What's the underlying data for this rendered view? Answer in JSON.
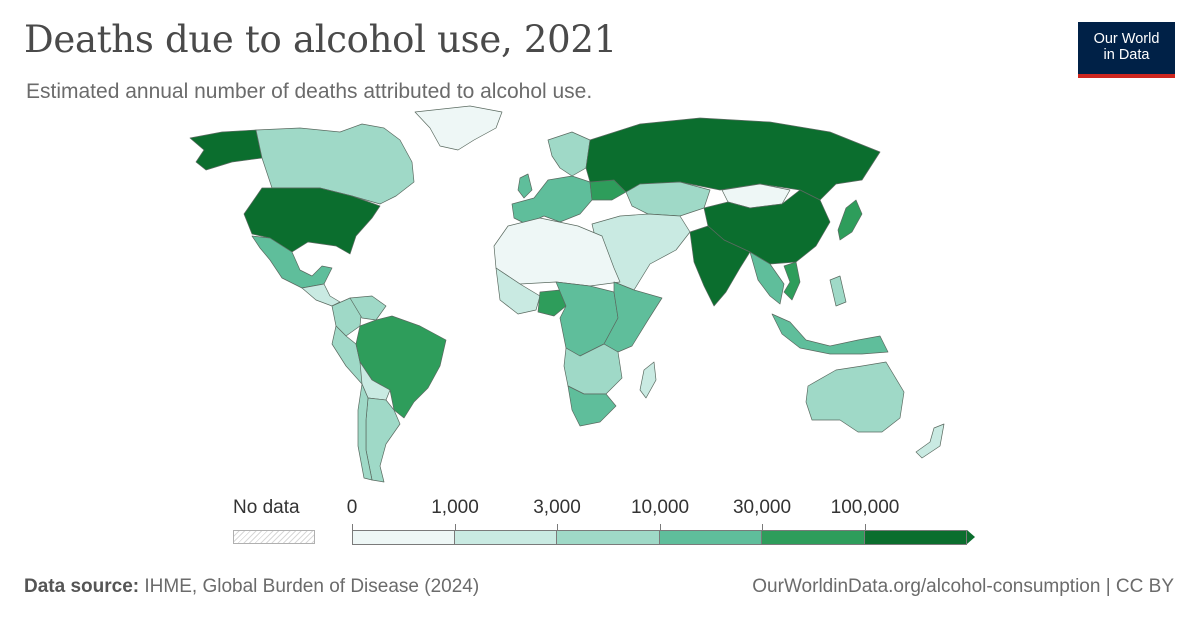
{
  "header": {
    "title": "Deaths due to alcohol use, 2021",
    "subtitle": "Estimated annual number of deaths attributed to alcohol use."
  },
  "logo": {
    "line1": "Our World",
    "line2": "in Data"
  },
  "legend": {
    "no_data_label": "No data",
    "tick_labels": [
      "0",
      "1,000",
      "3,000",
      "10,000",
      "30,000",
      "100,000"
    ],
    "colors": [
      "#eef7f6",
      "#c9eae2",
      "#9fd9c7",
      "#5fbe9b",
      "#2e9d5b",
      "#0b6e2e"
    ],
    "no_data_color": "#d8d8d8"
  },
  "map_regions": [
    {
      "name": "United States",
      "bin": 5
    },
    {
      "name": "Alaska",
      "bin": 5
    },
    {
      "name": "Canada",
      "bin": 2
    },
    {
      "name": "Greenland",
      "bin": 0
    },
    {
      "name": "Mexico",
      "bin": 3
    },
    {
      "name": "Central America",
      "bin": 1
    },
    {
      "name": "Colombia",
      "bin": 2
    },
    {
      "name": "Venezuela",
      "bin": 2
    },
    {
      "name": "Peru",
      "bin": 2
    },
    {
      "name": "Bolivia",
      "bin": 1
    },
    {
      "name": "Brazil",
      "bin": 4
    },
    {
      "name": "Argentina",
      "bin": 2
    },
    {
      "name": "Chile",
      "bin": 2
    },
    {
      "name": "United Kingdom",
      "bin": 3
    },
    {
      "name": "Europe",
      "bin": 3
    },
    {
      "name": "Ukraine",
      "bin": 4
    },
    {
      "name": "Scandinavia",
      "bin": 2
    },
    {
      "name": "Russia",
      "bin": 5
    },
    {
      "name": "Kazakhstan",
      "bin": 2
    },
    {
      "name": "Mongolia",
      "bin": 0
    },
    {
      "name": "China",
      "bin": 5
    },
    {
      "name": "India",
      "bin": 5
    },
    {
      "name": "Japan",
      "bin": 4
    },
    {
      "name": "Southeast Asia",
      "bin": 3
    },
    {
      "name": "Vietnam",
      "bin": 4
    },
    {
      "name": "Indonesia",
      "bin": 3
    },
    {
      "name": "Philippines",
      "bin": 2
    },
    {
      "name": "Middle East",
      "bin": 1
    },
    {
      "name": "North Africa",
      "bin": 0
    },
    {
      "name": "West Africa",
      "bin": 1
    },
    {
      "name": "Nigeria",
      "bin": 4
    },
    {
      "name": "Central Africa",
      "bin": 3
    },
    {
      "name": "East Africa",
      "bin": 3
    },
    {
      "name": "Southern Africa",
      "bin": 2
    },
    {
      "name": "South Africa",
      "bin": 3
    },
    {
      "name": "Madagascar",
      "bin": 1
    },
    {
      "name": "Australia",
      "bin": 2
    },
    {
      "name": "New Zealand",
      "bin": 1
    }
  ],
  "footer": {
    "source_label": "Data source:",
    "source_text": "IHME, Global Burden of Disease (2024)",
    "url": "OurWorldinData.org/alcohol-consumption | CC BY"
  }
}
